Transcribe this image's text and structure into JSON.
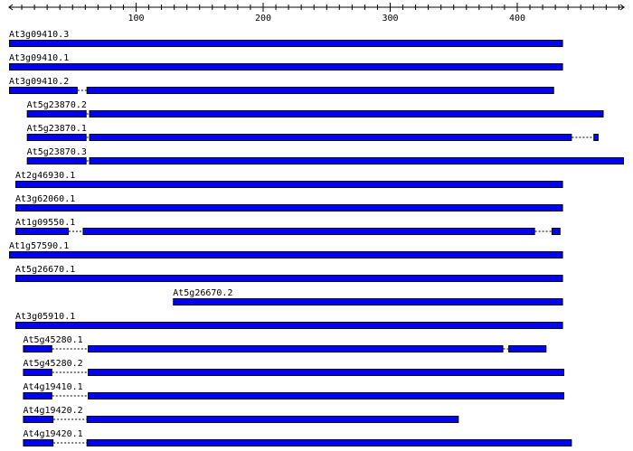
{
  "colors": {
    "segment_fill": "#0000ff",
    "segment_stroke": "#000000",
    "intron": "#000000",
    "axis": "#000000",
    "background": "#ffffff"
  },
  "axis": {
    "min": 0,
    "max": 484,
    "tick_labels": [
      "100",
      "200",
      "300",
      "400"
    ],
    "tick_values": [
      100,
      200,
      300,
      400
    ],
    "minor_step": 10
  },
  "genes": [
    {
      "label": "At3g09410.3",
      "segments": [
        [
          0,
          436
        ]
      ]
    },
    {
      "label": "At3g09410.1",
      "segments": [
        [
          0,
          436
        ]
      ]
    },
    {
      "label": "At3g09410.2",
      "segments": [
        [
          0,
          54
        ],
        [
          61,
          429
        ]
      ]
    },
    {
      "label": "At5g23870.2",
      "segments": [
        [
          14,
          61
        ],
        [
          63,
          468
        ]
      ]
    },
    {
      "label": "At5g23870.1",
      "segments": [
        [
          14,
          61
        ],
        [
          63,
          443
        ],
        [
          460,
          464
        ]
      ]
    },
    {
      "label": "At5g23870.3",
      "segments": [
        [
          14,
          61
        ],
        [
          63,
          484
        ]
      ]
    },
    {
      "label": "At2g46930.1",
      "segments": [
        [
          5,
          436
        ]
      ]
    },
    {
      "label": "At3g62060.1",
      "segments": [
        [
          5,
          436
        ]
      ]
    },
    {
      "label": "At1g09550.1",
      "segments": [
        [
          5,
          47
        ],
        [
          58,
          414
        ],
        [
          427,
          434
        ]
      ]
    },
    {
      "label": "At1g57590.1",
      "segments": [
        [
          0,
          436
        ]
      ]
    },
    {
      "label": "At5g26670.1",
      "segments": [
        [
          5,
          436
        ]
      ]
    },
    {
      "label": "At5g26670.2",
      "segments": [
        [
          129,
          436
        ]
      ]
    },
    {
      "label": "At3g05910.1",
      "segments": [
        [
          5,
          436
        ]
      ]
    },
    {
      "label": "At5g45280.1",
      "segments": [
        [
          11,
          34
        ],
        [
          62,
          389
        ],
        [
          393,
          423
        ]
      ]
    },
    {
      "label": "At5g45280.2",
      "segments": [
        [
          11,
          34
        ],
        [
          62,
          437
        ]
      ]
    },
    {
      "label": "At4g19410.1",
      "segments": [
        [
          11,
          34
        ],
        [
          62,
          437
        ]
      ]
    },
    {
      "label": "At4g19420.2",
      "segments": [
        [
          11,
          35
        ],
        [
          61,
          354
        ]
      ]
    },
    {
      "label": "At4g19420.1",
      "segments": [
        [
          11,
          35
        ],
        [
          61,
          443
        ]
      ]
    }
  ]
}
